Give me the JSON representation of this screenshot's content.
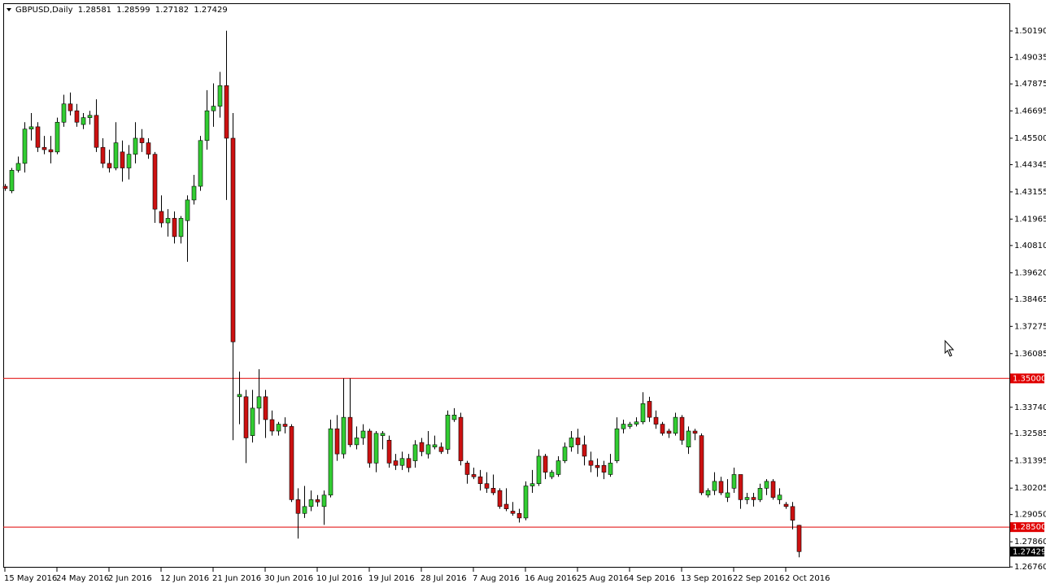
{
  "chart_data": {
    "type": "candlestick",
    "symbol": "GBPUSD,Daily",
    "bull_color": "#32cd32",
    "bear_color": "#cc1111",
    "ylim": [
      1.2655,
      1.514
    ],
    "yticks": [
      {
        "value": 1.5019,
        "label": "1.50190"
      },
      {
        "value": 1.49035,
        "label": "1.49035"
      },
      {
        "value": 1.47875,
        "label": "1.47875"
      },
      {
        "value": 1.46695,
        "label": "1.46695"
      },
      {
        "value": 1.455,
        "label": "1.45500"
      },
      {
        "value": 1.44345,
        "label": "1.44345"
      },
      {
        "value": 1.43155,
        "label": "1.43155"
      },
      {
        "value": 1.41965,
        "label": "1.41965"
      },
      {
        "value": 1.4081,
        "label": "1.40810"
      },
      {
        "value": 1.3962,
        "label": "1.39620"
      },
      {
        "value": 1.38465,
        "label": "1.38465"
      },
      {
        "value": 1.37275,
        "label": "1.37275"
      },
      {
        "value": 1.36085,
        "label": "1.36085"
      },
      {
        "value": 1.3374,
        "label": "1.33740"
      },
      {
        "value": 1.32585,
        "label": "1.32585"
      },
      {
        "value": 1.31395,
        "label": "1.31395"
      },
      {
        "value": 1.30205,
        "label": "1.30205"
      },
      {
        "value": 1.2905,
        "label": "1.29050"
      },
      {
        "value": 1.2786,
        "label": "1.27860"
      },
      {
        "value": 1.2676,
        "label": "1.26760"
      }
    ],
    "hlines": [
      {
        "value": 1.35,
        "label": "1.35000",
        "color": "#e00000"
      },
      {
        "value": 1.285,
        "label": "1.28500",
        "color": "#e00000"
      }
    ],
    "categories": [
      "15 May 2016",
      null,
      null,
      null,
      null,
      null,
      null,
      null,
      "24 May 2016",
      null,
      null,
      null,
      null,
      null,
      null,
      null,
      "2 Jun 2016",
      null,
      null,
      null,
      null,
      null,
      null,
      null,
      "12 Jun 2016",
      null,
      null,
      null,
      null,
      null,
      null,
      null,
      "21 Jun 2016",
      null,
      null,
      null,
      null,
      null,
      null,
      null,
      "30 Jun 2016",
      null,
      null,
      null,
      null,
      null,
      null,
      null,
      "10 Jul 2016",
      null,
      null,
      null,
      null,
      null,
      null,
      null,
      "19 Jul 2016",
      null,
      null,
      null,
      null,
      null,
      null,
      null,
      "28 Jul 2016",
      null,
      null,
      null,
      null,
      null,
      null,
      null,
      "7 Aug 2016",
      null,
      null,
      null,
      null,
      null,
      null,
      null,
      "16 Aug 2016",
      null,
      null,
      null,
      null,
      null,
      null,
      null,
      "25 Aug 2016",
      null,
      null,
      null,
      null,
      null,
      null,
      null,
      "4 Sep 2016",
      null,
      null,
      null,
      null,
      null,
      null,
      null,
      "13 Sep 2016",
      null,
      null,
      null,
      null,
      null,
      null,
      null,
      "22 Sep 2016",
      null,
      null,
      null,
      null,
      null,
      null,
      null,
      "2 Oct 2016",
      null,
      null
    ],
    "ohlc": [
      [
        1.434,
        1.435,
        1.432,
        1.433
      ],
      [
        1.432,
        1.442,
        1.431,
        1.441
      ],
      [
        1.441,
        1.447,
        1.44,
        1.444
      ],
      [
        1.444,
        1.462,
        1.44,
        1.459
      ],
      [
        1.459,
        1.466,
        1.454,
        1.46
      ],
      [
        1.46,
        1.462,
        1.449,
        1.451
      ],
      [
        1.451,
        1.456,
        1.448,
        1.45
      ],
      [
        1.45,
        1.456,
        1.444,
        1.449
      ],
      [
        1.449,
        1.464,
        1.448,
        1.462
      ],
      [
        1.462,
        1.474,
        1.46,
        1.47
      ],
      [
        1.47,
        1.475,
        1.465,
        1.467
      ],
      [
        1.467,
        1.47,
        1.46,
        1.462
      ],
      [
        1.461,
        1.466,
        1.459,
        1.464
      ],
      [
        1.464,
        1.467,
        1.461,
        1.465
      ],
      [
        1.465,
        1.472,
        1.449,
        1.451
      ],
      [
        1.451,
        1.455,
        1.442,
        1.444
      ],
      [
        1.444,
        1.45,
        1.44,
        1.442
      ],
      [
        1.442,
        1.462,
        1.441,
        1.453
      ],
      [
        1.449,
        1.454,
        1.436,
        1.442
      ],
      [
        1.442,
        1.452,
        1.437,
        1.448
      ],
      [
        1.448,
        1.462,
        1.444,
        1.455
      ],
      [
        1.455,
        1.459,
        1.449,
        1.453
      ],
      [
        1.453,
        1.455,
        1.446,
        1.448
      ],
      [
        1.448,
        1.449,
        1.418,
        1.424
      ],
      [
        1.423,
        1.43,
        1.416,
        1.418
      ],
      [
        1.418,
        1.424,
        1.412,
        1.42
      ],
      [
        1.42,
        1.423,
        1.409,
        1.412
      ],
      [
        1.412,
        1.421,
        1.409,
        1.42
      ],
      [
        1.419,
        1.43,
        1.401,
        1.428
      ],
      [
        1.428,
        1.439,
        1.426,
        1.434
      ],
      [
        1.434,
        1.456,
        1.432,
        1.454
      ],
      [
        1.454,
        1.476,
        1.45,
        1.467
      ],
      [
        1.467,
        1.479,
        1.46,
        1.469
      ],
      [
        1.469,
        1.484,
        1.464,
        1.478
      ],
      [
        1.478,
        1.502,
        1.428,
        1.455
      ],
      [
        1.455,
        1.466,
        1.323,
        1.366
      ],
      [
        1.342,
        1.353,
        1.33,
        1.343
      ],
      [
        1.342,
        1.345,
        1.313,
        1.324
      ],
      [
        1.325,
        1.345,
        1.322,
        1.337
      ],
      [
        1.337,
        1.354,
        1.33,
        1.342
      ],
      [
        1.342,
        1.345,
        1.324,
        1.332
      ],
      [
        1.332,
        1.336,
        1.325,
        1.327
      ],
      [
        1.327,
        1.331,
        1.325,
        1.33
      ],
      [
        1.33,
        1.333,
        1.326,
        1.329
      ],
      [
        1.329,
        1.33,
        1.296,
        1.297
      ],
      [
        1.297,
        1.302,
        1.28,
        1.291
      ],
      [
        1.291,
        1.303,
        1.289,
        1.294
      ],
      [
        1.294,
        1.301,
        1.292,
        1.297
      ],
      [
        1.297,
        1.299,
        1.294,
        1.296
      ],
      [
        1.294,
        1.301,
        1.286,
        1.299
      ],
      [
        1.299,
        1.332,
        1.298,
        1.328
      ],
      [
        1.328,
        1.334,
        1.314,
        1.317
      ],
      [
        1.317,
        1.35,
        1.315,
        1.333
      ],
      [
        1.333,
        1.35,
        1.32,
        1.321
      ],
      [
        1.321,
        1.329,
        1.319,
        1.324
      ],
      [
        1.324,
        1.33,
        1.321,
        1.327
      ],
      [
        1.327,
        1.328,
        1.311,
        1.313
      ],
      [
        1.313,
        1.327,
        1.309,
        1.326
      ],
      [
        1.325,
        1.327,
        1.319,
        1.326
      ],
      [
        1.323,
        1.325,
        1.311,
        1.313
      ],
      [
        1.314,
        1.317,
        1.31,
        1.312
      ],
      [
        1.312,
        1.318,
        1.31,
        1.315
      ],
      [
        1.315,
        1.317,
        1.309,
        1.311
      ],
      [
        1.314,
        1.323,
        1.311,
        1.321
      ],
      [
        1.322,
        1.324,
        1.316,
        1.318
      ],
      [
        1.317,
        1.327,
        1.315,
        1.321
      ],
      [
        1.32,
        1.325,
        1.319,
        1.321
      ],
      [
        1.32,
        1.322,
        1.317,
        1.318
      ],
      [
        1.319,
        1.336,
        1.317,
        1.334
      ],
      [
        1.332,
        1.337,
        1.331,
        1.334
      ],
      [
        1.333,
        1.335,
        1.312,
        1.314
      ],
      [
        1.313,
        1.314,
        1.304,
        1.308
      ],
      [
        1.308,
        1.311,
        1.306,
        1.307
      ],
      [
        1.307,
        1.31,
        1.301,
        1.304
      ],
      [
        1.304,
        1.309,
        1.3,
        1.302
      ],
      [
        1.302,
        1.308,
        1.299,
        1.3
      ],
      [
        1.301,
        1.302,
        1.293,
        1.294
      ],
      [
        1.295,
        1.302,
        1.292,
        1.293
      ],
      [
        1.292,
        1.296,
        1.29,
        1.291
      ],
      [
        1.291,
        1.293,
        1.287,
        1.289
      ],
      [
        1.289,
        1.305,
        1.288,
        1.303
      ],
      [
        1.303,
        1.31,
        1.3,
        1.304
      ],
      [
        1.304,
        1.319,
        1.303,
        1.316
      ],
      [
        1.316,
        1.317,
        1.306,
        1.309
      ],
      [
        1.307,
        1.31,
        1.306,
        1.309
      ],
      [
        1.308,
        1.316,
        1.307,
        1.314
      ],
      [
        1.314,
        1.322,
        1.313,
        1.32
      ],
      [
        1.32,
        1.327,
        1.318,
        1.324
      ],
      [
        1.324,
        1.328,
        1.317,
        1.321
      ],
      [
        1.321,
        1.325,
        1.312,
        1.316
      ],
      [
        1.314,
        1.318,
        1.309,
        1.312
      ],
      [
        1.312,
        1.315,
        1.307,
        1.311
      ],
      [
        1.312,
        1.314,
        1.306,
        1.309
      ],
      [
        1.308,
        1.317,
        1.307,
        1.313
      ],
      [
        1.314,
        1.333,
        1.313,
        1.328
      ],
      [
        1.328,
        1.332,
        1.326,
        1.33
      ],
      [
        1.329,
        1.331,
        1.328,
        1.33
      ],
      [
        1.33,
        1.333,
        1.329,
        1.331
      ],
      [
        1.331,
        1.344,
        1.33,
        1.339
      ],
      [
        1.34,
        1.342,
        1.331,
        1.333
      ],
      [
        1.333,
        1.336,
        1.328,
        1.33
      ],
      [
        1.33,
        1.331,
        1.325,
        1.326
      ],
      [
        1.327,
        1.328,
        1.324,
        1.326
      ],
      [
        1.326,
        1.335,
        1.325,
        1.333
      ],
      [
        1.333,
        1.334,
        1.321,
        1.323
      ],
      [
        1.32,
        1.329,
        1.317,
        1.327
      ],
      [
        1.327,
        1.328,
        1.323,
        1.326
      ],
      [
        1.325,
        1.326,
        1.299,
        1.3
      ],
      [
        1.299,
        1.302,
        1.298,
        1.301
      ],
      [
        1.301,
        1.309,
        1.299,
        1.305
      ],
      [
        1.305,
        1.307,
        1.299,
        1.3
      ],
      [
        1.298,
        1.306,
        1.296,
        1.3
      ],
      [
        1.302,
        1.311,
        1.3,
        1.308
      ],
      [
        1.308,
        1.308,
        1.293,
        1.297
      ],
      [
        1.297,
        1.3,
        1.295,
        1.298
      ],
      [
        1.298,
        1.3,
        1.294,
        1.297
      ],
      [
        1.297,
        1.304,
        1.296,
        1.302
      ],
      [
        1.302,
        1.306,
        1.299,
        1.305
      ],
      [
        1.305,
        1.306,
        1.297,
        1.298
      ],
      [
        1.297,
        1.302,
        1.295,
        1.299
      ],
      [
        1.295,
        1.296,
        1.293,
        1.294
      ],
      [
        1.294,
        1.296,
        1.284,
        1.288
      ],
      [
        1.28581,
        1.28599,
        1.27182,
        1.27429
      ]
    ]
  }
}
